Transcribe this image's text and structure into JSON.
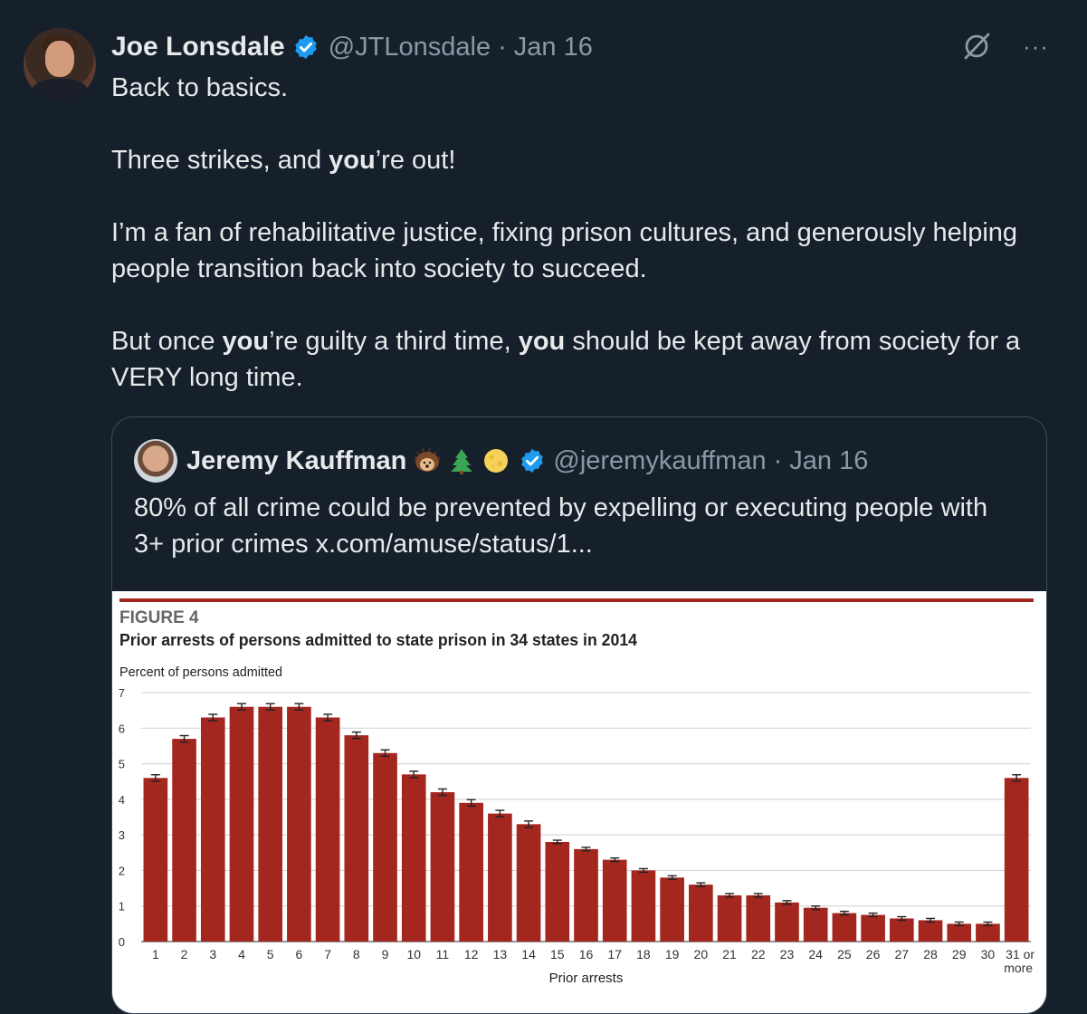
{
  "author": {
    "name": "Joe Lonsdale",
    "handle": "@JTLonsdale",
    "separator": "·",
    "date": "Jan 16"
  },
  "icons": {
    "verified": "verified-badge-icon",
    "grok": "grok-icon",
    "more": "more-icon"
  },
  "top_icons": {
    "more": "···"
  },
  "tweet": {
    "line1": "Back to basics.",
    "p2_a": "Three strikes, and ",
    "p2_b": "you",
    "p2_c": "’re out!",
    "p3": "I’m a fan of rehabilitative justice, fixing prison cultures, and generously helping people transition back into society to succeed.",
    "p4_a": "But once ",
    "p4_b": "you",
    "p4_c": "’re guilty a third time, ",
    "p4_d": "you",
    "p4_e": " should be kept away from society for a VERY long time."
  },
  "quote": {
    "name": "Jeremy Kauffman",
    "emojis": [
      "hedgehog",
      "evergreen-tree",
      "full-moon"
    ],
    "handle": "@jeremykauffman",
    "separator": "·",
    "date": "Jan 16",
    "text": "80% of all crime could be prevented by expelling or executing people with 3+ prior crimes  x.com/amuse/status/1..."
  },
  "colors": {
    "background": "#15202b",
    "verified": "#1d9bf0",
    "bar": "#a3261f",
    "text_secondary": "#8b98a5"
  },
  "chart_data": {
    "type": "bar",
    "figure_label": "FIGURE 4",
    "title": "Prior arrests of persons admitted to state prison in 34 states in 2014",
    "ylabel": "Percent of persons admitted",
    "xlabel": "Prior arrests",
    "ylim": [
      0,
      7
    ],
    "yticks": [
      "0",
      "1",
      "2",
      "3",
      "4",
      "5",
      "6",
      "7"
    ],
    "grid": true,
    "error_bars": true,
    "categories": [
      "1",
      "2",
      "3",
      "4",
      "5",
      "6",
      "7",
      "8",
      "9",
      "10",
      "11",
      "12",
      "13",
      "14",
      "15",
      "16",
      "17",
      "18",
      "19",
      "20",
      "21",
      "22",
      "23",
      "24",
      "25",
      "26",
      "27",
      "28",
      "29",
      "30",
      "31 or more"
    ],
    "values": [
      4.6,
      5.7,
      6.3,
      6.6,
      6.6,
      6.6,
      6.3,
      5.8,
      5.3,
      4.7,
      4.2,
      3.9,
      3.6,
      3.3,
      2.8,
      2.6,
      2.3,
      2.0,
      1.8,
      1.6,
      1.3,
      1.3,
      1.1,
      0.95,
      0.8,
      0.75,
      0.65,
      0.6,
      0.5,
      0.5,
      4.6
    ]
  }
}
